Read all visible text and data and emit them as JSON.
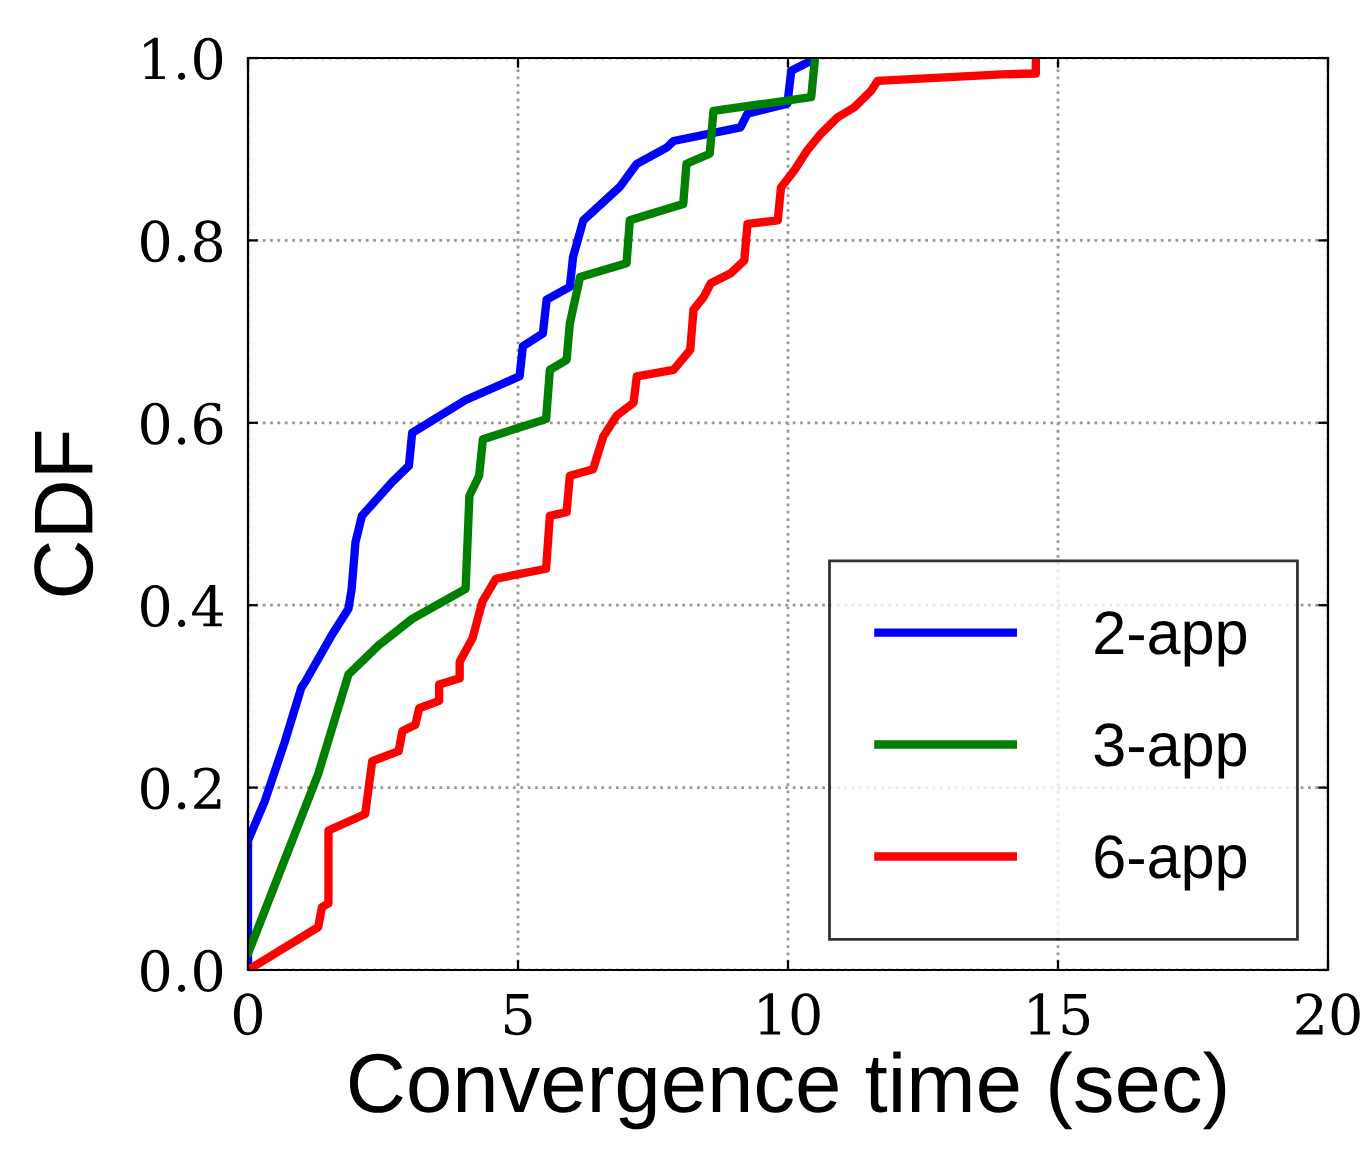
{
  "chart_data": {
    "type": "line",
    "xlabel": "Convergence time (sec)",
    "ylabel": "CDF",
    "xlim": [
      0,
      20
    ],
    "ylim": [
      0,
      1
    ],
    "xticks": [
      0,
      5,
      10,
      15,
      20
    ],
    "yticks": [
      {
        "value": 0,
        "label": "0.0"
      },
      {
        "value": 0.2,
        "label": "0.2"
      },
      {
        "value": 0.4,
        "label": "0.4"
      },
      {
        "value": 0.6,
        "label": "0.6"
      },
      {
        "value": 0.8,
        "label": "0.8"
      },
      {
        "value": 1,
        "label": "1.0"
      }
    ],
    "grid": true,
    "legend": "bottom right",
    "line_style": "solid",
    "marker": "none",
    "series": [
      {
        "name": "2-app",
        "color": "#0000ff",
        "x": [
          0,
          0,
          0.31,
          0.68,
          0.99,
          1.06,
          1.55,
          1.86,
          1.92,
          1.99,
          2.11,
          2.67,
          2.98,
          3.04,
          4.03,
          5.03,
          5.09,
          5.46,
          5.53,
          5.96,
          6.02,
          6.21,
          6.89,
          7.2,
          7.76,
          7.88,
          9.12,
          9.25,
          9.99,
          10.06,
          10.43,
          10.47
        ],
        "values": [
          0,
          0.142,
          0.185,
          0.25,
          0.31,
          0.316,
          0.367,
          0.396,
          0.418,
          0.469,
          0.498,
          0.535,
          0.553,
          0.589,
          0.625,
          0.651,
          0.684,
          0.698,
          0.735,
          0.749,
          0.782,
          0.822,
          0.859,
          0.884,
          0.902,
          0.909,
          0.924,
          0.939,
          0.95,
          0.986,
          0.997,
          1.0
        ]
      },
      {
        "name": "3-app",
        "color": "#008000",
        "x": [
          0,
          1.3,
          1.86,
          2.42,
          3.04,
          4.03,
          4.1,
          4.28,
          4.35,
          5.52,
          5.59,
          5.9,
          5.96,
          6.15,
          7.01,
          7.07,
          8.06,
          8.12,
          8.55,
          8.62,
          10.43,
          10.5
        ],
        "values": [
          0.018,
          0.215,
          0.324,
          0.356,
          0.385,
          0.418,
          0.52,
          0.542,
          0.582,
          0.604,
          0.658,
          0.669,
          0.709,
          0.76,
          0.775,
          0.822,
          0.84,
          0.884,
          0.895,
          0.942,
          0.957,
          1.0
        ]
      },
      {
        "name": "6-app",
        "color": "#ff0000",
        "x": [
          0,
          1.3,
          1.37,
          1.49,
          1.49,
          2.17,
          2.3,
          2.79,
          2.86,
          3.1,
          3.17,
          3.54,
          3.54,
          3.92,
          3.92,
          4.16,
          4.34,
          4.59,
          5.52,
          5.59,
          5.9,
          5.96,
          6.39,
          6.58,
          6.83,
          7.14,
          7.2,
          7.88,
          8.19,
          8.25,
          8.44,
          8.57,
          8.94,
          9.19,
          9.25,
          9.81,
          9.87,
          10.12,
          10.36,
          10.61,
          10.92,
          11.23,
          11.54,
          11.66,
          13.96,
          14.59,
          14.59
        ],
        "values": [
          0,
          0.047,
          0.069,
          0.073,
          0.153,
          0.171,
          0.229,
          0.24,
          0.262,
          0.269,
          0.287,
          0.295,
          0.313,
          0.32,
          0.338,
          0.364,
          0.404,
          0.429,
          0.44,
          0.498,
          0.502,
          0.542,
          0.549,
          0.585,
          0.608,
          0.622,
          0.651,
          0.658,
          0.68,
          0.724,
          0.738,
          0.753,
          0.764,
          0.778,
          0.818,
          0.822,
          0.858,
          0.877,
          0.899,
          0.917,
          0.935,
          0.946,
          0.964,
          0.975,
          0.982,
          0.983,
          1.0
        ]
      }
    ]
  }
}
